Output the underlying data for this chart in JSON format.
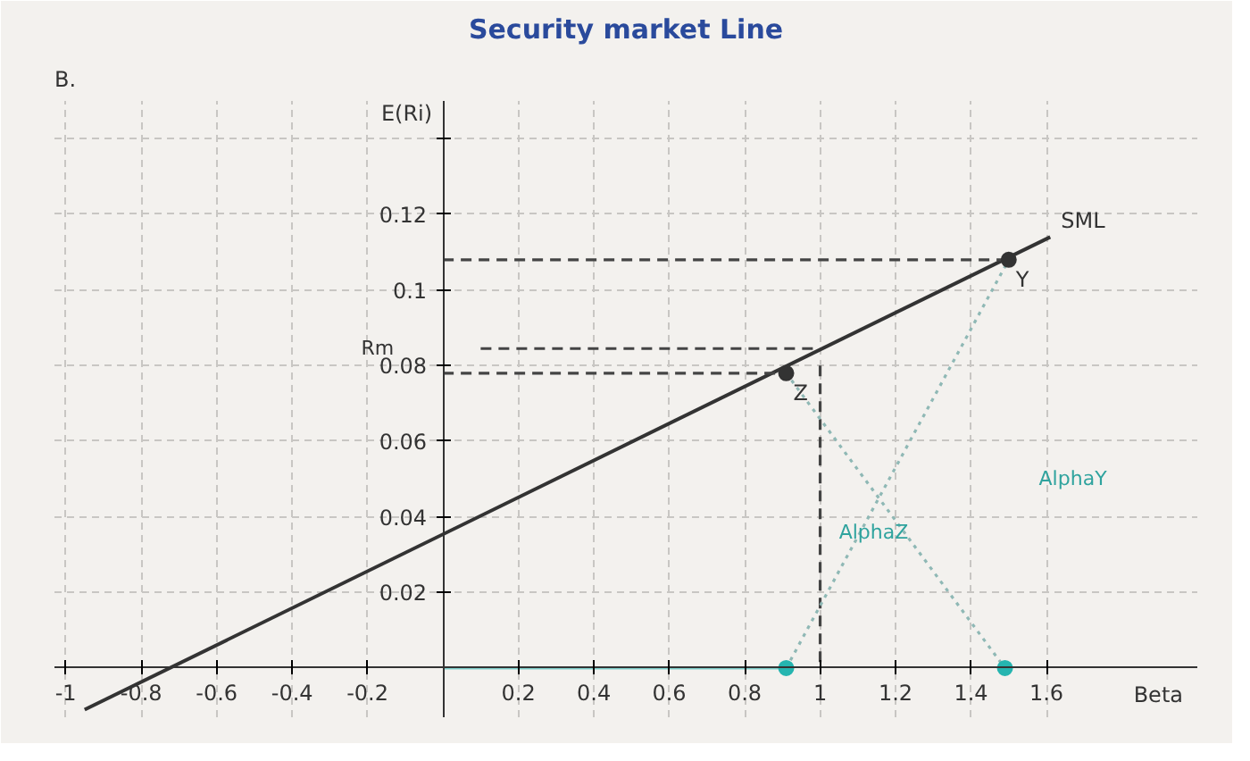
{
  "chart_data": {
    "type": "line",
    "title": "Security market Line",
    "xlabel": "Beta",
    "ylabel": "E(Ri)",
    "xlim": [
      -1.03,
      2.0
    ],
    "ylim": [
      -0.013,
      0.15
    ],
    "xticks": [
      -1,
      -0.8,
      -0.6,
      -0.4,
      -0.2,
      0.2,
      0.4,
      0.6,
      0.8,
      1,
      1.2,
      1.4,
      1.6
    ],
    "yticks": [
      0.02,
      0.04,
      0.06,
      0.08,
      0.1,
      0.12,
      {
        "value": 0.14,
        "label": null
      }
    ],
    "grid": true,
    "legend": false,
    "series": [
      {
        "name": "SML",
        "color": "#333333",
        "x": [
          -0.95,
          1.61
        ],
        "values": [
          -0.011,
          0.114
        ]
      },
      {
        "type": "line",
        "line_style": "dashed",
        "color": "#444444",
        "x": [
          0,
          1.5
        ],
        "values": [
          0.108,
          0.108
        ]
      },
      {
        "type": "line",
        "line_style": "dashed",
        "color": "#444444",
        "x": [
          0.1,
          1
        ],
        "values": [
          0.0845,
          0.0845
        ]
      },
      {
        "type": "line",
        "line_style": "dashed",
        "color": "#444444",
        "x": [
          1,
          1
        ],
        "values": [
          0.08,
          0
        ]
      },
      {
        "type": "line",
        "line_style": "dashed",
        "color": "#444444",
        "x": [
          0,
          0.91
        ],
        "values": [
          0.078,
          0.078
        ]
      },
      {
        "type": "line",
        "line_style": "dotted",
        "color": "#8fb8b5",
        "x": [
          0.91,
          1.49
        ],
        "values": [
          0.078,
          0
        ]
      },
      {
        "type": "line",
        "line_style": "dotted",
        "color": "#8fb8b5",
        "x": [
          0.91,
          1.5
        ],
        "values": [
          0,
          0.108
        ]
      },
      {
        "type": "line",
        "color": "#7fd0cc",
        "x": [
          0,
          0.91
        ],
        "values": [
          0,
          0
        ]
      },
      {
        "type": "scatter",
        "marker": "circle",
        "color": "#333333",
        "x": [
          0.91,
          1.5
        ],
        "values": [
          0.078,
          0.108
        ]
      },
      {
        "type": "scatter",
        "marker": "circle",
        "color": "#26b5b0",
        "x": [
          0.91,
          1.49
        ],
        "values": [
          0,
          0
        ]
      }
    ],
    "annotations": [
      "B.",
      "Rm",
      {
        "text": "Z",
        "x": 0.91,
        "y": 0.078
      },
      {
        "text": "Y",
        "x": 1.5,
        "y": 0.108
      },
      "AlphaZ",
      "AlphaY"
    ]
  }
}
